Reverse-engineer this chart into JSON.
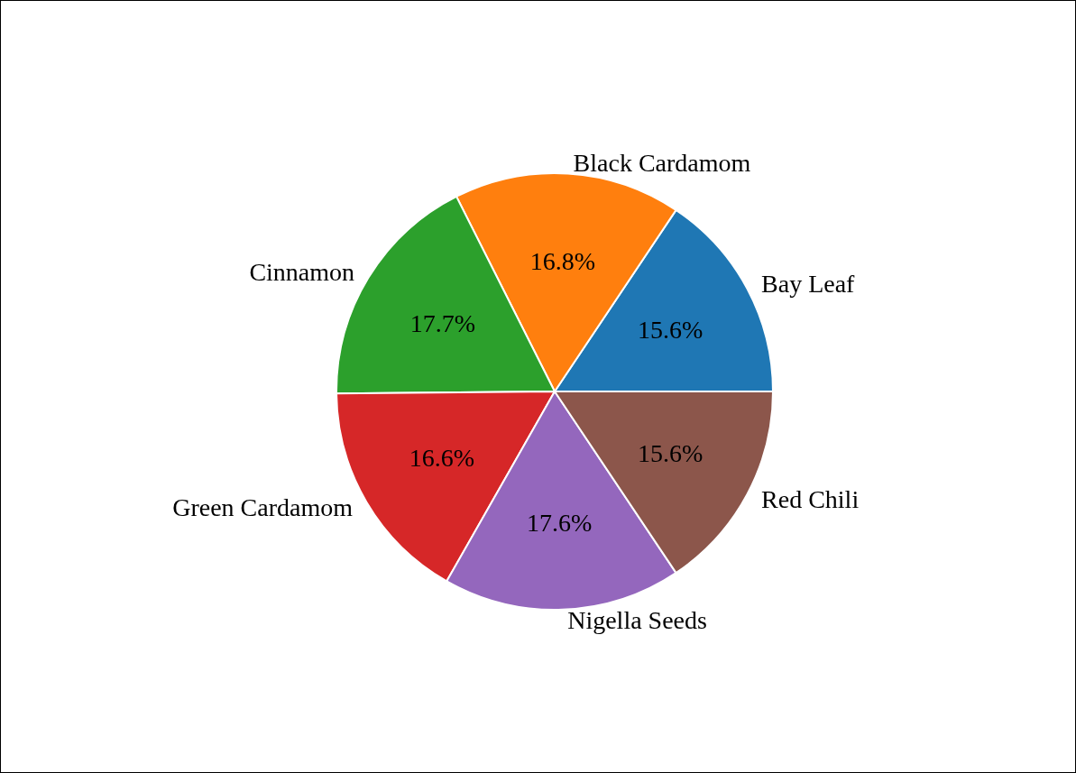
{
  "chart_data": {
    "type": "pie",
    "categories": [
      "Bay Leaf",
      "Black Cardamom",
      "Cinnamon",
      "Green Cardamom",
      "Nigella Seeds",
      "Red Chili"
    ],
    "values": [
      15.6,
      16.8,
      17.7,
      16.6,
      17.6,
      15.6
    ],
    "colors": [
      "#1f77b4",
      "#ff7f0e",
      "#2ca02c",
      "#d62728",
      "#9467bd",
      "#8c564b"
    ],
    "value_labels": [
      "15.6%",
      "16.8%",
      "17.7%",
      "16.6%",
      "17.6%",
      "15.6%"
    ],
    "legend": false
  }
}
